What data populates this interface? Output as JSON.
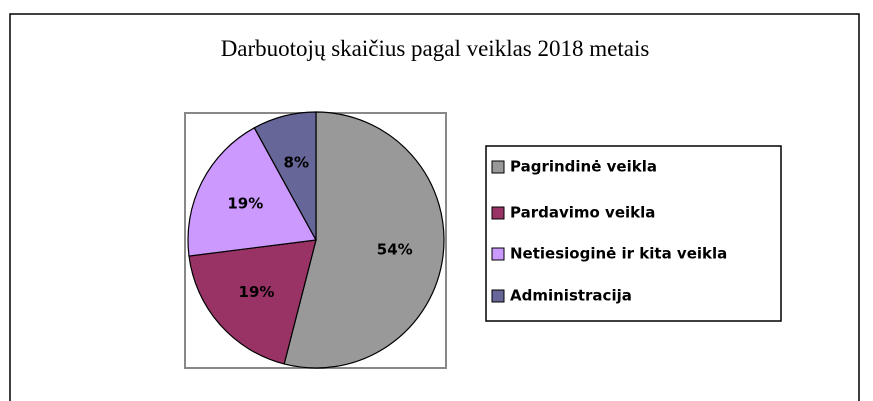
{
  "chart_data": {
    "type": "pie",
    "title": "Darbuotojų skaičius pagal veiklas 2018 metais",
    "categories": [
      "Pagrindinė veikla",
      "Pardavimo veikla",
      "Netiesioginė ir kita veikla",
      "Administracija"
    ],
    "values": [
      54,
      19,
      19,
      8
    ],
    "value_labels": [
      "54%",
      "19%",
      "19%",
      "8%"
    ],
    "colors": [
      "#999999",
      "#993366",
      "#cc99ff",
      "#666699"
    ],
    "legend": "right"
  }
}
